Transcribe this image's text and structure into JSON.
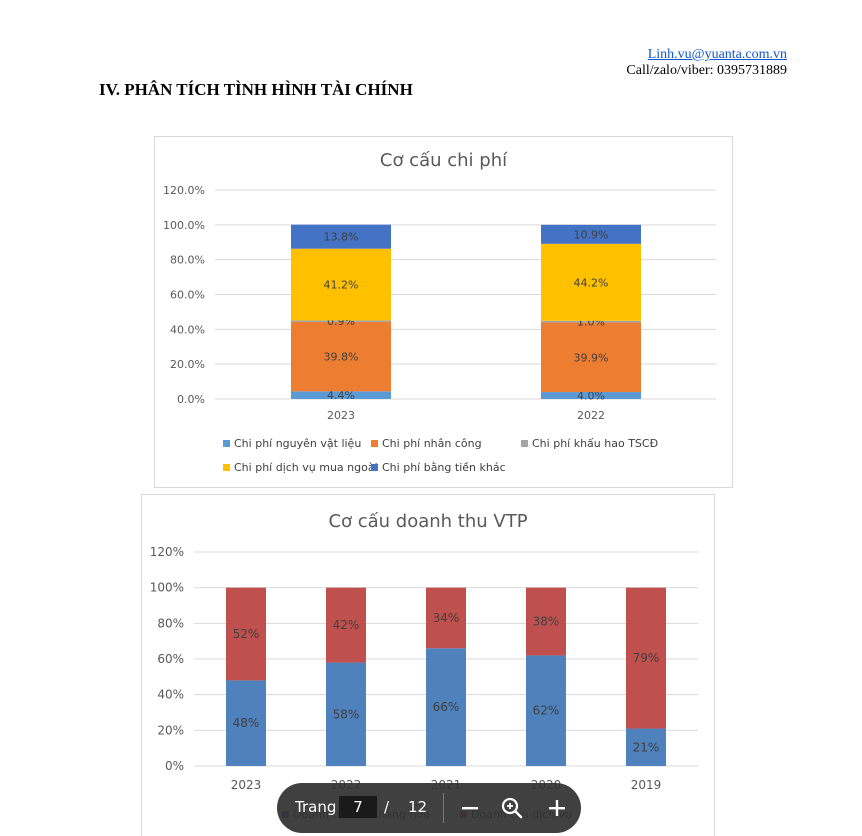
{
  "header": {
    "email": "Linh.vu@yuanta.com.vn",
    "phone_line": "Call/zalo/viber: 0395731889",
    "section_title": "IV. PHÂN TÍCH TÌNH HÌNH TÀI CHÍNH"
  },
  "chart_data": [
    {
      "type": "bar",
      "stacked": true,
      "title": "Cơ cấu chi phí",
      "categories": [
        "2023",
        "2022"
      ],
      "ylim": [
        0,
        120
      ],
      "yticks": [
        "0.0%",
        "20.0%",
        "40.0%",
        "60.0%",
        "80.0%",
        "100.0%",
        "120.0%"
      ],
      "series": [
        {
          "name": "Chi phí nguyên vật liệu",
          "color": "#5b9bd5",
          "values": [
            4.4,
            4.0
          ],
          "labels": [
            "4.4%",
            "4.0%"
          ]
        },
        {
          "name": "Chi phí nhân công",
          "color": "#ed7d31",
          "values": [
            39.8,
            39.9
          ],
          "labels": [
            "39.8%",
            "39.9%"
          ]
        },
        {
          "name": "Chi phí khấu hao TSCĐ",
          "color": "#a5a5a5",
          "values": [
            0.9,
            1.0
          ],
          "labels": [
            "0.9%",
            "1.0%"
          ]
        },
        {
          "name": "Chi phí dịch vụ mua ngoài",
          "color": "#ffc000",
          "values": [
            41.2,
            44.2
          ],
          "labels": [
            "41.2%",
            "44.2%"
          ]
        },
        {
          "name": "Chi phí bằng tiền khác",
          "color": "#4472c4",
          "values": [
            13.8,
            10.9
          ],
          "labels": [
            "13.8%",
            "10.9%"
          ]
        }
      ],
      "legend": "bottom"
    },
    {
      "type": "bar",
      "stacked": true,
      "title": "Cơ cấu doanh thu VTP",
      "categories": [
        "2023",
        "2022",
        "2021",
        "2020",
        "2019"
      ],
      "ylim": [
        0,
        120
      ],
      "yticks": [
        "0%",
        "20%",
        "40%",
        "60%",
        "80%",
        "100%",
        "120%"
      ],
      "series": [
        {
          "name": "Doanh thu bán hàng hóa",
          "color": "#4f81bd",
          "values": [
            48,
            58,
            66,
            62,
            21
          ],
          "labels": [
            "48%",
            "58%",
            "66%",
            "62%",
            "21%"
          ]
        },
        {
          "name": "Doanh thu dịch vụ",
          "color": "#c0504d",
          "values": [
            52,
            42,
            34,
            38,
            79
          ],
          "labels": [
            "52%",
            "42%",
            "34%",
            "38%",
            "79%"
          ]
        }
      ],
      "legend": "bottom"
    }
  ],
  "toolbar": {
    "page_label": "Trang",
    "current_page": "7",
    "separator": "/",
    "total_pages": "12",
    "zoom_out_icon": "minus-icon",
    "zoom_reset_icon": "zoom-icon",
    "zoom_in_icon": "plus-icon"
  }
}
